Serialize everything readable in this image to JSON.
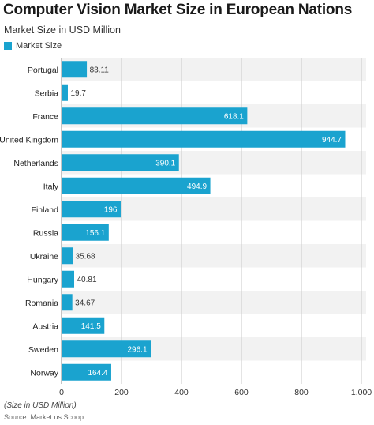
{
  "title": "Computer Vision Market Size in European Nations",
  "subtitle": "Market Size in USD Million",
  "footnote": "(Size in USD Million)",
  "source": "Source: Market.us Scoop",
  "colors": {
    "bar": "#1aa3cf",
    "band": "#f2f2f2",
    "grid": "#c9c9c9",
    "label_inside": "#ffffff",
    "label_outside": "#333333"
  },
  "chart_data": {
    "type": "bar",
    "orientation": "horizontal",
    "categories": [
      "Portugal",
      "Serbia",
      "France",
      "United Kingdom",
      "Netherlands",
      "Italy",
      "Finland",
      "Russia",
      "Ukraine",
      "Hungary",
      "Romania",
      "Austria",
      "Sweden",
      "Norway"
    ],
    "series": [
      {
        "name": "Market Size",
        "values": [
          83.11,
          19.7,
          618.1,
          944.7,
          390.1,
          494.9,
          196,
          156.1,
          35.68,
          40.81,
          34.67,
          141.5,
          296.1,
          164.4
        ],
        "labels": [
          "83.11",
          "19.7",
          "618.1",
          "944.7",
          "390.1",
          "494.9",
          "196",
          "156.1",
          "35.68",
          "40.81",
          "34.67",
          "141.5",
          "296.1",
          "164.4"
        ]
      }
    ],
    "xlim": [
      0,
      1000
    ],
    "xticks": [
      0,
      200,
      400,
      600,
      800,
      1000
    ],
    "xtick_labels": [
      "0",
      "200",
      "400",
      "600",
      "800",
      "1,000"
    ],
    "grid": true,
    "legend_position": "top-left"
  }
}
